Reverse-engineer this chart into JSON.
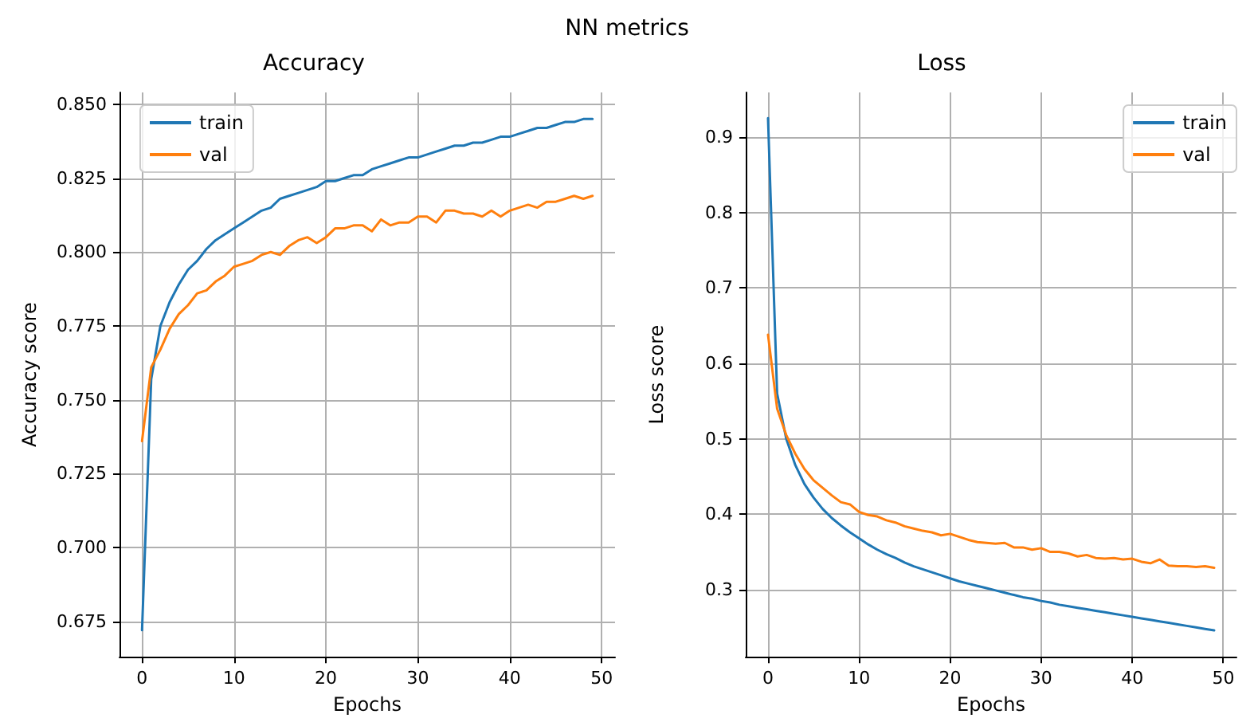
{
  "chart_data": [
    {
      "type": "line",
      "title": "Accuracy",
      "xlabel": "Epochs",
      "ylabel": "Accuracy score",
      "annotations": [
        "NN metrics"
      ],
      "x": [
        0,
        1,
        2,
        3,
        4,
        5,
        6,
        7,
        8,
        9,
        10,
        11,
        12,
        13,
        14,
        15,
        16,
        17,
        18,
        19,
        20,
        21,
        22,
        23,
        24,
        25,
        26,
        27,
        28,
        29,
        30,
        31,
        32,
        33,
        34,
        35,
        36,
        37,
        38,
        39,
        40,
        41,
        42,
        43,
        44,
        45,
        46,
        47,
        48,
        49
      ],
      "series": [
        {
          "name": "train",
          "color": "#1f77b4",
          "values": [
            0.672,
            0.757,
            0.775,
            0.783,
            0.789,
            0.794,
            0.797,
            0.801,
            0.804,
            0.806,
            0.808,
            0.81,
            0.812,
            0.814,
            0.815,
            0.818,
            0.819,
            0.82,
            0.821,
            0.822,
            0.824,
            0.824,
            0.825,
            0.826,
            0.826,
            0.828,
            0.829,
            0.83,
            0.831,
            0.832,
            0.832,
            0.833,
            0.834,
            0.835,
            0.836,
            0.836,
            0.837,
            0.837,
            0.838,
            0.839,
            0.839,
            0.84,
            0.841,
            0.842,
            0.842,
            0.843,
            0.844,
            0.844,
            0.845,
            0.845
          ]
        },
        {
          "name": "val",
          "color": "#ff7f0e",
          "values": [
            0.736,
            0.761,
            0.767,
            0.774,
            0.779,
            0.782,
            0.786,
            0.787,
            0.79,
            0.792,
            0.795,
            0.796,
            0.797,
            0.799,
            0.8,
            0.799,
            0.802,
            0.804,
            0.805,
            0.803,
            0.805,
            0.808,
            0.808,
            0.809,
            0.809,
            0.807,
            0.811,
            0.809,
            0.81,
            0.81,
            0.812,
            0.812,
            0.81,
            0.814,
            0.814,
            0.813,
            0.813,
            0.812,
            0.814,
            0.812,
            0.814,
            0.815,
            0.816,
            0.815,
            0.817,
            0.817,
            0.818,
            0.819,
            0.818,
            0.819
          ]
        }
      ],
      "xlim": [
        -2.45,
        51.45
      ],
      "xticks": [
        0,
        10,
        20,
        30,
        40,
        50
      ],
      "ylim": [
        0.663,
        0.854
      ],
      "yticks": [
        {
          "value": 0.675,
          "label": "0.675"
        },
        {
          "value": 0.7,
          "label": "0.700"
        },
        {
          "value": 0.725,
          "label": "0.725"
        },
        {
          "value": 0.75,
          "label": "0.750"
        },
        {
          "value": 0.775,
          "label": "0.775"
        },
        {
          "value": 0.8,
          "label": "0.800"
        },
        {
          "value": 0.825,
          "label": "0.825"
        },
        {
          "value": 0.85,
          "label": "0.850"
        }
      ],
      "grid": true,
      "legend": "top left",
      "marker": "none",
      "line_style": "solid"
    },
    {
      "type": "line",
      "title": "Loss",
      "xlabel": "Epochs",
      "ylabel": "Loss score",
      "x": [
        0,
        1,
        2,
        3,
        4,
        5,
        6,
        7,
        8,
        9,
        10,
        11,
        12,
        13,
        14,
        15,
        16,
        17,
        18,
        19,
        20,
        21,
        22,
        23,
        24,
        25,
        26,
        27,
        28,
        29,
        30,
        31,
        32,
        33,
        34,
        35,
        36,
        37,
        38,
        39,
        40,
        41,
        42,
        43,
        44,
        45,
        46,
        47,
        48,
        49
      ],
      "series": [
        {
          "name": "train",
          "color": "#1f77b4",
          "values": [
            0.925,
            0.56,
            0.5,
            0.465,
            0.44,
            0.422,
            0.407,
            0.395,
            0.385,
            0.376,
            0.368,
            0.36,
            0.353,
            0.347,
            0.342,
            0.336,
            0.331,
            0.327,
            0.323,
            0.319,
            0.315,
            0.311,
            0.308,
            0.305,
            0.302,
            0.299,
            0.296,
            0.293,
            0.29,
            0.288,
            0.285,
            0.283,
            0.28,
            0.278,
            0.276,
            0.274,
            0.272,
            0.27,
            0.268,
            0.266,
            0.264,
            0.262,
            0.26,
            0.258,
            0.256,
            0.254,
            0.252,
            0.25,
            0.248,
            0.246
          ]
        },
        {
          "name": "val",
          "color": "#ff7f0e",
          "values": [
            0.638,
            0.54,
            0.505,
            0.48,
            0.46,
            0.445,
            0.435,
            0.425,
            0.416,
            0.413,
            0.403,
            0.399,
            0.397,
            0.392,
            0.389,
            0.384,
            0.381,
            0.378,
            0.376,
            0.372,
            0.374,
            0.37,
            0.366,
            0.363,
            0.362,
            0.361,
            0.362,
            0.356,
            0.356,
            0.353,
            0.355,
            0.35,
            0.35,
            0.348,
            0.344,
            0.346,
            0.342,
            0.341,
            0.342,
            0.34,
            0.341,
            0.337,
            0.335,
            0.34,
            0.332,
            0.331,
            0.331,
            0.33,
            0.331,
            0.329
          ]
        }
      ],
      "xlim": [
        -2.45,
        51.45
      ],
      "xticks": [
        0,
        10,
        20,
        30,
        40,
        50
      ],
      "ylim": [
        0.211,
        0.959
      ],
      "yticks": [
        0.3,
        0.4,
        0.5,
        0.6,
        0.7,
        0.8,
        0.9
      ],
      "grid": true,
      "legend": "top right",
      "marker": "none",
      "line_style": "solid"
    }
  ]
}
